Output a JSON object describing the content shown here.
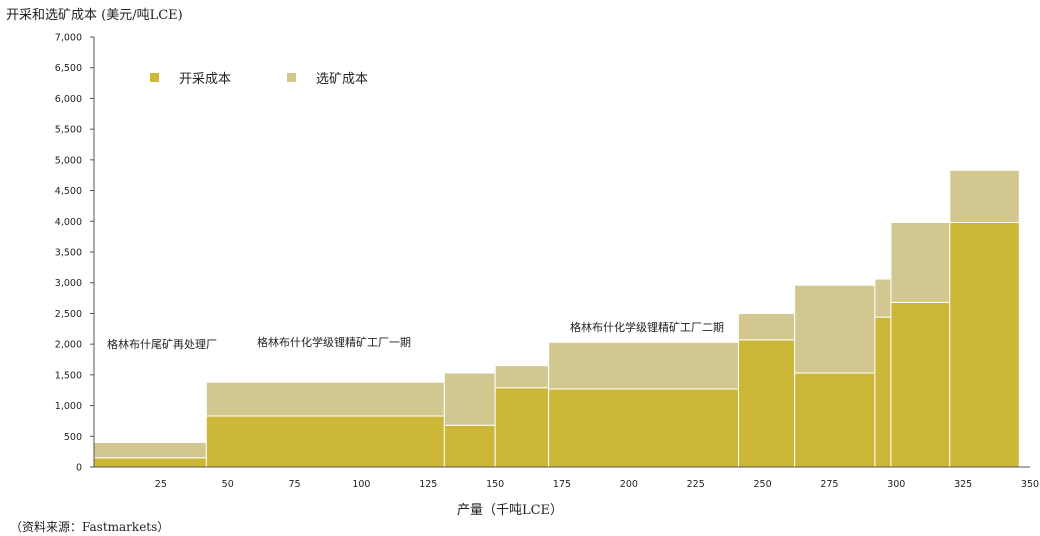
{
  "chart_data": {
    "type": "bar",
    "ylabel": "开采和选矿成本 (美元/吨LCE)",
    "xlabel": "产量（千吨LCE）",
    "source": "（资料来源：Fastmarkets）",
    "ylim": [
      0,
      7000
    ],
    "xlim": [
      0,
      350
    ],
    "yticks": [
      "0",
      "500",
      "1,000",
      "1,500",
      "2,000",
      "2,500",
      "3,000",
      "3,500",
      "4,000",
      "4,500",
      "5,000",
      "5,500",
      "6,000",
      "6,500",
      "7,000"
    ],
    "xticks": [
      "25",
      "50",
      "75",
      "100",
      "125",
      "150",
      "175",
      "200",
      "225",
      "250",
      "275",
      "300",
      "325",
      "350"
    ],
    "legend": {
      "placement": "top-left",
      "entries": [
        "开采成本",
        "选矿成本"
      ]
    },
    "series": [
      {
        "name": "开采成本",
        "color": "#CDB737"
      },
      {
        "name": "选矿成本",
        "color": "#D2C88F"
      }
    ],
    "bars": [
      {
        "x0": 0,
        "x1": 42,
        "mining": 150,
        "processing": 250
      },
      {
        "x0": 42,
        "x1": 131,
        "mining": 830,
        "processing": 550
      },
      {
        "x0": 131,
        "x1": 150,
        "mining": 680,
        "processing": 850
      },
      {
        "x0": 150,
        "x1": 170,
        "mining": 1290,
        "processing": 360
      },
      {
        "x0": 170,
        "x1": 241,
        "mining": 1270,
        "processing": 760
      },
      {
        "x0": 241,
        "x1": 262,
        "mining": 2070,
        "processing": 430
      },
      {
        "x0": 262,
        "x1": 292,
        "mining": 1530,
        "processing": 1430
      },
      {
        "x0": 292,
        "x1": 298,
        "mining": 2440,
        "processing": 620
      },
      {
        "x0": 298,
        "x1": 320,
        "mining": 2680,
        "processing": 1300
      },
      {
        "x0": 320,
        "x1": 346,
        "mining": 3980,
        "processing": 850
      }
    ],
    "annotations": [
      "格林布什尾矿再处理厂",
      "格林布什化学级锂精矿工厂一期",
      "格林布什化学级锂精矿工厂二期"
    ]
  }
}
